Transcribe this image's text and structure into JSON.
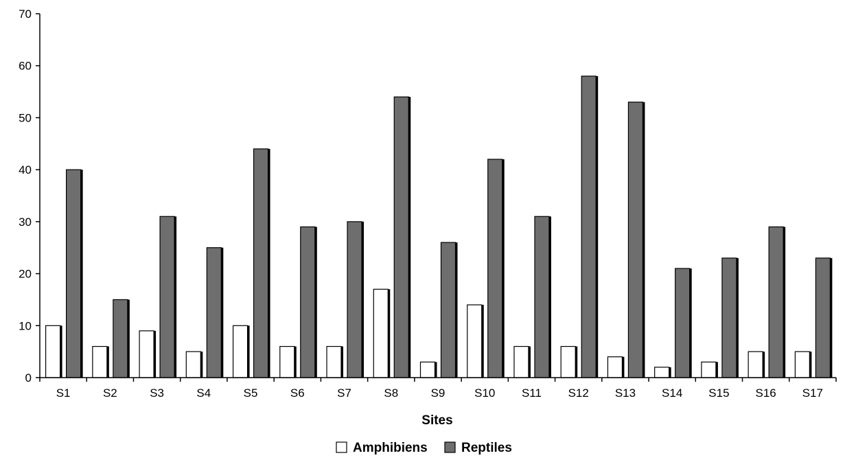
{
  "chart_data": {
    "type": "bar",
    "title": "",
    "xlabel": "Sites",
    "ylabel": "",
    "ylim": [
      0,
      70
    ],
    "yticks": [
      0,
      10,
      20,
      30,
      40,
      50,
      60,
      70
    ],
    "grid": false,
    "legend_position": "bottom",
    "categories": [
      "S1",
      "S2",
      "S3",
      "S4",
      "S5",
      "S6",
      "S7",
      "S8",
      "S9",
      "S10",
      "S11",
      "S12",
      "S13",
      "S14",
      "S15",
      "S16",
      "S17"
    ],
    "series": [
      {
        "name": "Amphibiens",
        "color": "#ffffff",
        "values": [
          10,
          6,
          9,
          5,
          10,
          6,
          6,
          17,
          3,
          14,
          6,
          6,
          4,
          2,
          3,
          5,
          5
        ]
      },
      {
        "name": "Reptiles",
        "color": "#6e6e6e",
        "values": [
          40,
          15,
          31,
          25,
          44,
          29,
          30,
          54,
          26,
          42,
          31,
          58,
          53,
          21,
          23,
          29,
          23
        ]
      }
    ]
  }
}
